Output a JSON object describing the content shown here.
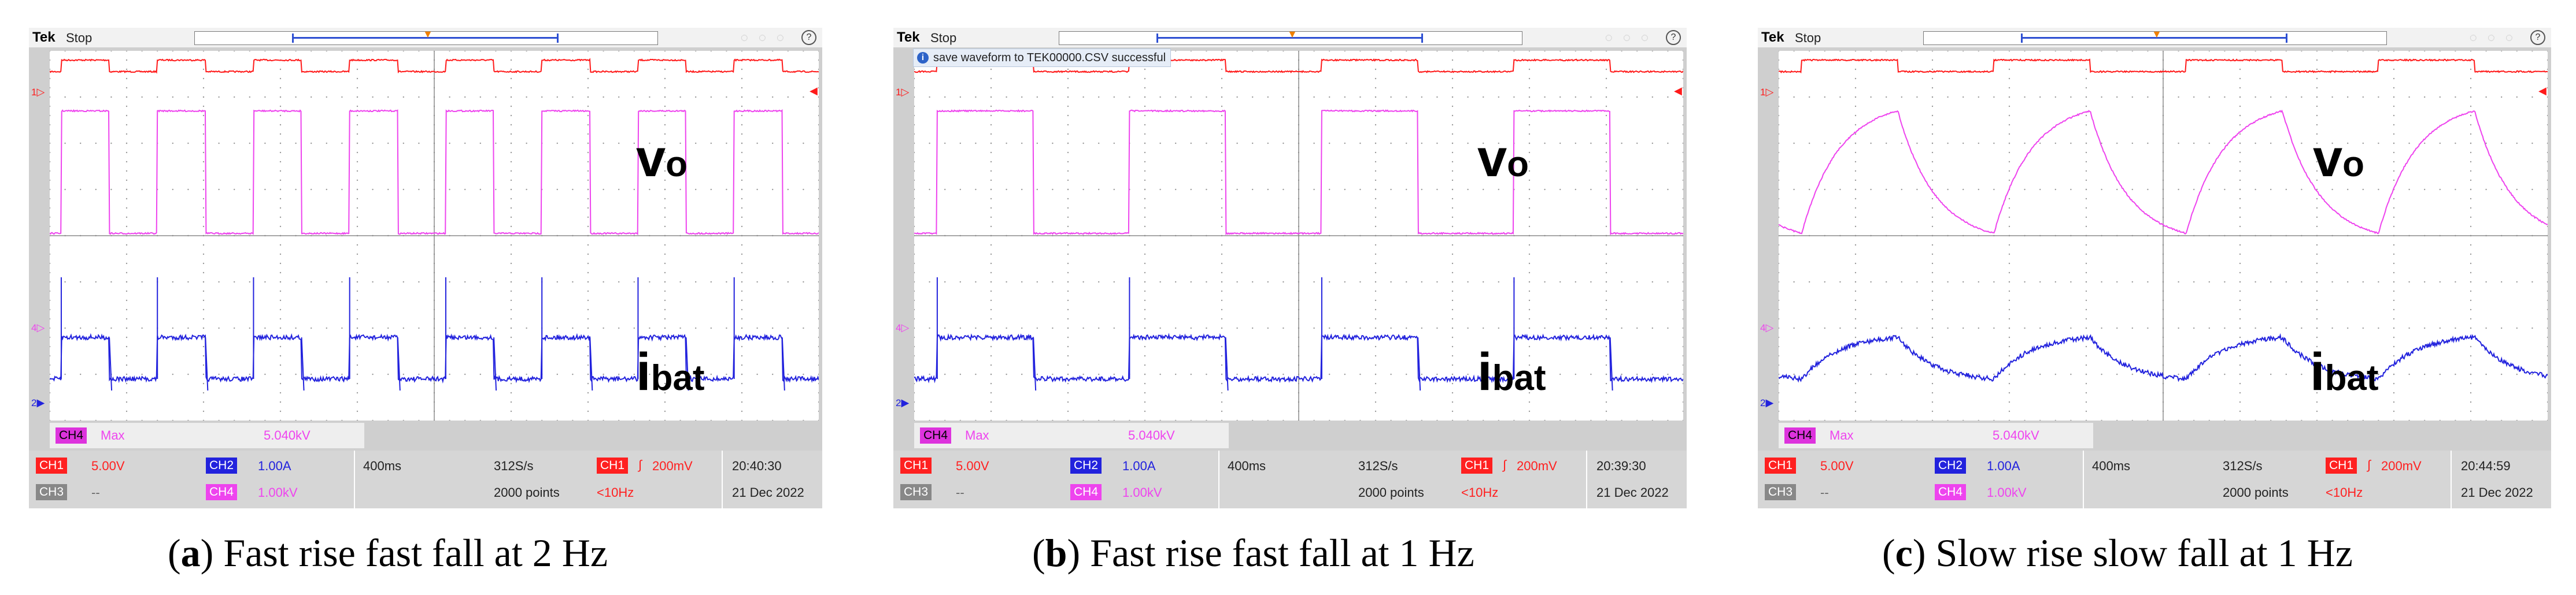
{
  "panels": [
    {
      "id": "a",
      "header": {
        "brand": "Tek",
        "state": "Stop"
      },
      "message": "",
      "waveform_labels": {
        "vo_main": "v",
        "vo_sub": "o",
        "ibat_main": "i",
        "ibat_sub": "bat"
      },
      "ch4_readout": {
        "badge": "CH4",
        "measure": "Max",
        "value": "5.040kV"
      },
      "channels": [
        {
          "badge": "CH1",
          "value": "5.00V"
        },
        {
          "badge": "CH2",
          "value": "1.00A"
        },
        {
          "badge": "CH3",
          "value": "--"
        },
        {
          "badge": "CH4",
          "value": "1.00kV"
        }
      ],
      "timebase": "400ms",
      "sample_rate": "312S/s",
      "record_length": "2000 points",
      "trigger": {
        "badge": "CH1",
        "level": "200mV",
        "freq": "<10Hz"
      },
      "time": "20:40:30",
      "date": "21 Dec 2022",
      "caption": {
        "letter": "a",
        "text": " Fast rise fast fall at 2 Hz"
      }
    },
    {
      "id": "b",
      "header": {
        "brand": "Tek",
        "state": "Stop"
      },
      "message": "save waveform to TEK00000.CSV successful",
      "waveform_labels": {
        "vo_main": "v",
        "vo_sub": "o",
        "ibat_main": "i",
        "ibat_sub": "bat"
      },
      "ch4_readout": {
        "badge": "CH4",
        "measure": "Max",
        "value": "5.040kV"
      },
      "channels": [
        {
          "badge": "CH1",
          "value": "5.00V"
        },
        {
          "badge": "CH2",
          "value": "1.00A"
        },
        {
          "badge": "CH3",
          "value": "--"
        },
        {
          "badge": "CH4",
          "value": "1.00kV"
        }
      ],
      "timebase": "400ms",
      "sample_rate": "312S/s",
      "record_length": "2000 points",
      "trigger": {
        "badge": "CH1",
        "level": "200mV",
        "freq": "<10Hz"
      },
      "time": "20:39:30",
      "date": "21 Dec 2022",
      "caption": {
        "letter": "b",
        "text": " Fast rise fast fall at 1 Hz"
      }
    },
    {
      "id": "c",
      "header": {
        "brand": "Tek",
        "state": "Stop"
      },
      "message": "",
      "waveform_labels": {
        "vo_main": "v",
        "vo_sub": "o",
        "ibat_main": "i",
        "ibat_sub": "bat"
      },
      "ch4_readout": {
        "badge": "CH4",
        "measure": "Max",
        "value": "5.040kV"
      },
      "channels": [
        {
          "badge": "CH1",
          "value": "5.00V"
        },
        {
          "badge": "CH2",
          "value": "1.00A"
        },
        {
          "badge": "CH3",
          "value": "--"
        },
        {
          "badge": "CH4",
          "value": "1.00kV"
        }
      ],
      "timebase": "400ms",
      "sample_rate": "312S/s",
      "record_length": "2000 points",
      "trigger": {
        "badge": "CH1",
        "level": "200mV",
        "freq": "<10Hz"
      },
      "time": "20:44:59",
      "date": "21 Dec 2022",
      "caption": {
        "letter": "c",
        "text": " Slow rise slow fall at 1 Hz"
      }
    }
  ],
  "chart_data": [
    {
      "type": "line",
      "title": "(a) Fast rise fast fall at 2 Hz",
      "x_unit": "s",
      "x_range": [
        0,
        4.0
      ],
      "x_per_div": 0.4,
      "divisions": [
        10,
        8
      ],
      "waveform_shape": "square",
      "frequency_hz": 2,
      "series": [
        {
          "name": "CH1 trigger",
          "channel": "CH1",
          "color": "#ff1a1a",
          "shape": "square",
          "cycles": 8,
          "high_div": 3.8,
          "low_div": 3.55
        },
        {
          "name": "vo",
          "channel": "CH4",
          "color": "#ee44ee",
          "shape": "square",
          "cycles": 8,
          "high_div": 2.7,
          "low_div": 0.05
        },
        {
          "name": "ibat",
          "channel": "CH2",
          "color": "#2222dd",
          "shape": "square_spikes",
          "cycles": 8,
          "high_div": -2.2,
          "low_div": -3.1
        }
      ]
    },
    {
      "type": "line",
      "title": "(b) Fast rise fast fall at 1 Hz",
      "x_unit": "s",
      "x_range": [
        0,
        4.0
      ],
      "x_per_div": 0.4,
      "divisions": [
        10,
        8
      ],
      "waveform_shape": "square",
      "frequency_hz": 1,
      "series": [
        {
          "name": "CH1 trigger",
          "channel": "CH1",
          "color": "#ff1a1a",
          "shape": "square",
          "cycles": 4,
          "high_div": 3.8,
          "low_div": 3.55
        },
        {
          "name": "vo",
          "channel": "CH4",
          "color": "#ee44ee",
          "shape": "square",
          "cycles": 4,
          "high_div": 2.7,
          "low_div": 0.05
        },
        {
          "name": "ibat",
          "channel": "CH2",
          "color": "#2222dd",
          "shape": "square_spikes",
          "cycles": 4,
          "high_div": -2.2,
          "low_div": -3.1
        }
      ]
    },
    {
      "type": "line",
      "title": "(c) Slow rise slow fall at 1 Hz",
      "x_unit": "s",
      "x_range": [
        0,
        4.0
      ],
      "x_per_div": 0.4,
      "divisions": [
        10,
        8
      ],
      "waveform_shape": "exponential",
      "frequency_hz": 1,
      "series": [
        {
          "name": "CH1 trigger",
          "channel": "CH1",
          "color": "#ff1a1a",
          "shape": "square",
          "cycles": 4,
          "high_div": 3.8,
          "low_div": 3.55
        },
        {
          "name": "vo",
          "channel": "CH4",
          "color": "#ee44ee",
          "shape": "exp",
          "cycles": 4,
          "high_div": 2.7,
          "low_div": 0.05
        },
        {
          "name": "ibat",
          "channel": "CH2",
          "color": "#2222dd",
          "shape": "exp",
          "cycles": 4,
          "high_div": -2.2,
          "low_div": -3.1
        }
      ]
    }
  ]
}
